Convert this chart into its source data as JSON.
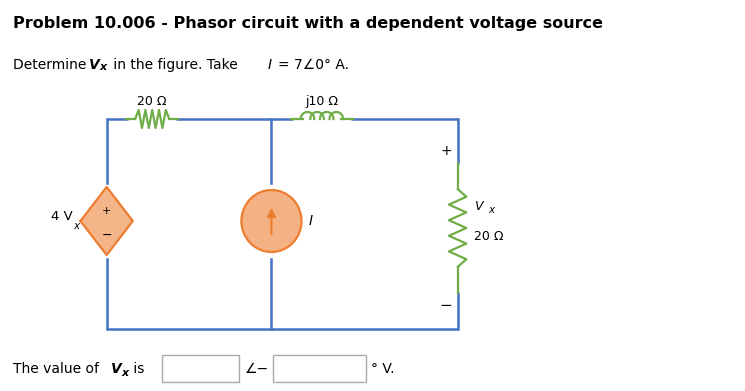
{
  "title": "Problem 10.006 - Phasor circuit with a dependent voltage source",
  "bg_color": "#ffffff",
  "resistor20_label": "20 Ω",
  "resistorj10_label": "j10 Ω",
  "resistor20r_label": "20 Ω",
  "dep_source_label": "4 V",
  "dep_source_sub": "x",
  "current_label": "I",
  "vx_label": "V",
  "vx_sub": "x",
  "wire_color": "#4472c4",
  "resistor_color": "#70ad47",
  "dep_source_color": "#ed7d31",
  "cur_source_color": "#ed7d31",
  "dep_source_fill": "#f4b183",
  "cur_source_fill": "#f4b183"
}
